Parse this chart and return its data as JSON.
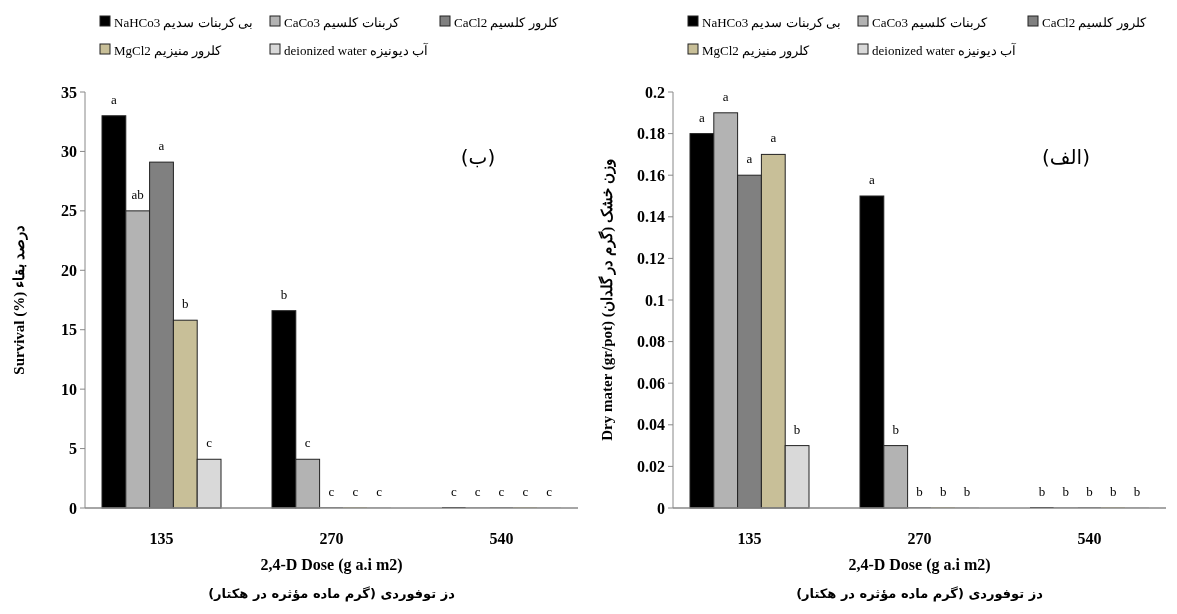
{
  "chart_data": [
    {
      "type": "bar",
      "categories": [
        "135",
        "270",
        "540"
      ],
      "ylabel": "Survival (%) درصد بقاء",
      "xlabel": "2,4-D Dose (g a.i m2)",
      "annotations": [
        "(ب)",
        "دز توفوردی (گرم ماده مؤثره در هکتار)"
      ],
      "ylim": [
        0,
        35
      ],
      "yticks": [
        0,
        5,
        10,
        15,
        20,
        25,
        30,
        35
      ],
      "grid": false,
      "legend": "top",
      "series": [
        {
          "name": "NaHCo3 بی کربنات سدیم",
          "color": "#000000",
          "values": [
            33,
            16.6,
            0
          ],
          "value_labels": [
            "a",
            "b",
            "c"
          ]
        },
        {
          "name": "CaCo3 کربنات کلسیم",
          "color": "#b3b3b3",
          "values": [
            25,
            4.1,
            0
          ],
          "value_labels": [
            "ab",
            "c",
            "c"
          ]
        },
        {
          "name": "CaCl2 کلرور کلسیم",
          "color": "#808080",
          "values": [
            29.1,
            0,
            0
          ],
          "value_labels": [
            "a",
            "c",
            "c"
          ]
        },
        {
          "name": "MgCl2 کلرور منیزیم",
          "color": "#c8bf98",
          "values": [
            15.8,
            0,
            0
          ],
          "value_labels": [
            "b",
            "c",
            "c"
          ]
        },
        {
          "name": "deionized water آب دیونیزه",
          "color": "#d9d9d9",
          "values": [
            4.1,
            0,
            0
          ],
          "value_labels": [
            "c",
            "c",
            "c"
          ]
        }
      ]
    },
    {
      "type": "bar",
      "categories": [
        "135",
        "270",
        "540"
      ],
      "ylabel": "Dry mater (gr/pot) وزن خشک (گرم در گلدان)",
      "xlabel": "2,4-D Dose (g a.i m2)",
      "annotations": [
        "(الف)",
        "دز توفوردی (گرم ماده مؤثره در هکتار)"
      ],
      "ylim": [
        0,
        0.2
      ],
      "yticks": [
        0,
        0.02,
        0.04,
        0.06,
        0.08,
        0.1,
        0.12,
        0.14,
        0.16,
        0.18,
        0.2
      ],
      "grid": false,
      "legend": "top",
      "series": [
        {
          "name": "NaHCo3 بی کربنات سدیم",
          "color": "#000000",
          "values": [
            0.18,
            0.15,
            0
          ],
          "value_labels": [
            "a",
            "a",
            "b"
          ]
        },
        {
          "name": "CaCo3 کربنات کلسیم",
          "color": "#b3b3b3",
          "values": [
            0.19,
            0.03,
            0
          ],
          "value_labels": [
            "a",
            "b",
            "b"
          ]
        },
        {
          "name": "CaCl2 کلرور کلسیم",
          "color": "#808080",
          "values": [
            0.16,
            0,
            0
          ],
          "value_labels": [
            "a",
            "b",
            "b"
          ]
        },
        {
          "name": "MgCl2 کلرور منیزیم",
          "color": "#c8bf98",
          "values": [
            0.17,
            0,
            0
          ],
          "value_labels": [
            "a",
            "b",
            "b"
          ]
        },
        {
          "name": "deionized water آب دیونیزه",
          "color": "#d9d9d9",
          "values": [
            0.03,
            0,
            0
          ],
          "value_labels": [
            "b",
            "b",
            "b"
          ]
        }
      ]
    }
  ]
}
